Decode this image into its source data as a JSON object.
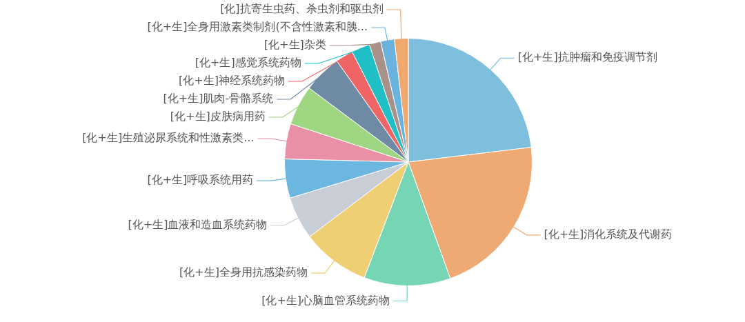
{
  "chart_data": {
    "type": "pie",
    "legend": false,
    "categories": [
      "[化+生]抗肿瘤和免疫调节剂",
      "[化+生]消化系统及代谢药",
      "[化+生]心脑血管系统药物",
      "[化+生]全身用抗感染药物",
      "[化+生]血液和造血系统药物",
      "[化+生]呼吸系统用药",
      "[化+生]生殖泌尿系统和性激素类...",
      "[化+生]皮肤病用药",
      "[化+生]肌肉-骨骼系统",
      "[化+生]神经系统药物",
      "[化+生]感觉系统药物",
      "[化+生]杂类",
      "[化+生]全身用激素类制剂(不含性激素和胰...",
      "[化]抗寄生虫药、杀虫剂和驱虫剂"
    ],
    "values": [
      23.1,
      21.4,
      11.3,
      8.9,
      5.6,
      5.1,
      4.6,
      5.2,
      5.0,
      2.3,
      2.4,
      1.5,
      1.8,
      1.8
    ],
    "colors": [
      "#7dbfdc",
      "#eeaa72",
      "#75d5b4",
      "#eecf73",
      "#c9cdd6",
      "#6cb7e0",
      "#e98fa6",
      "#9ed682",
      "#6f8aa5",
      "#ef6565",
      "#1fbfc5",
      "#a89188",
      "#6ab3de",
      "#f0a86c"
    ]
  }
}
